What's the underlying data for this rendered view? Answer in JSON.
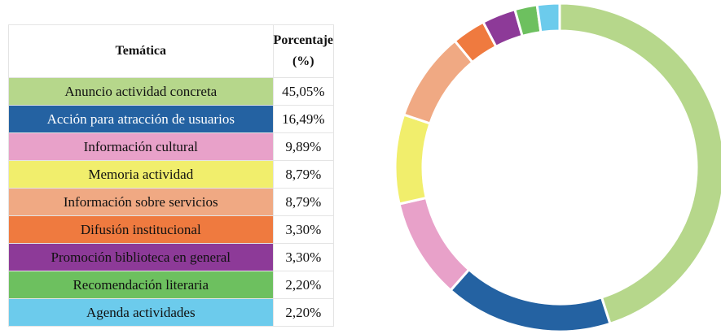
{
  "chart_data": {
    "type": "pie",
    "headers": [
      "Temática",
      "Porcentaje (%)"
    ],
    "categories": [
      "Anuncio actividad concreta",
      "Acción para atracción de usuarios",
      "Información cultural",
      "Memoria actividad",
      "Información sobre servicios",
      "Difusión institucional",
      "Promoción biblioteca en general",
      "Recomendación literaria",
      "Agenda actividades"
    ],
    "values": [
      45.05,
      16.49,
      9.89,
      8.79,
      8.79,
      3.3,
      3.3,
      2.2,
      2.2
    ],
    "value_labels": [
      "45,05%",
      "16,49%",
      "9,89%",
      "8,79%",
      "8,79%",
      "3,30%",
      "3,30%",
      "2,20%",
      "2,20%"
    ],
    "colors": [
      "#b6d78b",
      "#2462a2",
      "#e8a1c9",
      "#f1ee6c",
      "#f0a983",
      "#ef7a3f",
      "#8d3a98",
      "#6dc05f",
      "#6ccbec"
    ]
  }
}
